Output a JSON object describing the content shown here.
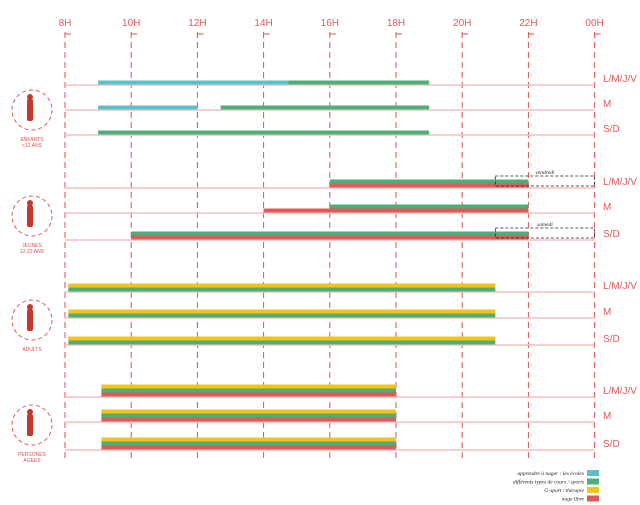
{
  "chart_data": {
    "type": "bar",
    "x_ticks": [
      "8H",
      "10H",
      "12H",
      "14H",
      "16H",
      "18H",
      "20H",
      "22H",
      "00H"
    ],
    "xlim": [
      8,
      24
    ],
    "colors": {
      "apprendre": "#5bc0c8",
      "cours": "#4caf7a",
      "gsport": "#f2c318",
      "libre": "#e05a5a",
      "line": "#f4c0c0",
      "grid": "#d9534f"
    },
    "legend": [
      {
        "key": "apprendre",
        "label": "apprendre à nager : les écoles"
      },
      {
        "key": "cours",
        "label": "différents types de cours / sports"
      },
      {
        "key": "gsport",
        "label": "G-sport / thérapie"
      },
      {
        "key": "libre",
        "label": "nage libre"
      }
    ],
    "groups": [
      {
        "name": "ENFANTS",
        "sub": "<12 ANS",
        "icon": "children-icon",
        "rows": [
          {
            "day": "L/M/J/V",
            "bars": [
              [
                {
                  "key": "apprendre",
                  "start": 9,
                  "end": 14.75
                },
                {
                  "key": "cours",
                  "start": 14.75,
                  "end": 19
                }
              ]
            ]
          },
          {
            "day": "M",
            "bars": [
              [
                {
                  "key": "apprendre",
                  "start": 9,
                  "end": 12
                },
                {
                  "key": "cours",
                  "start": 12.7,
                  "end": 19
                }
              ]
            ]
          },
          {
            "day": "S/D",
            "bars": [
              [
                {
                  "key": "cours",
                  "start": 9,
                  "end": 19
                }
              ]
            ]
          }
        ]
      },
      {
        "name": "JEUNES",
        "sub": "12-22 ANS",
        "icon": "youth-icon",
        "rows": [
          {
            "day": "L/M/J/V",
            "bars": [
              [
                {
                  "key": "cours",
                  "start": 16,
                  "end": 22
                }
              ],
              [
                {
                  "key": "libre",
                  "start": 16,
                  "end": 22
                }
              ]
            ],
            "note": {
              "label": "vendredi",
              "start": 21,
              "end": 24
            }
          },
          {
            "day": "M",
            "bars": [
              [
                {
                  "key": "cours",
                  "start": 16,
                  "end": 22
                }
              ],
              [
                {
                  "key": "libre",
                  "start": 14,
                  "end": 22
                }
              ]
            ]
          },
          {
            "day": "S/D",
            "bars": [
              [
                {
                  "key": "cours",
                  "start": 10,
                  "end": 22
                }
              ],
              [
                {
                  "key": "libre",
                  "start": 10,
                  "end": 22
                }
              ]
            ],
            "note": {
              "label": "samedi",
              "start": 21,
              "end": 24
            }
          }
        ]
      },
      {
        "name": "ADULTS",
        "sub": "",
        "icon": "adult-icon",
        "rows": [
          {
            "day": "L/M/J/V",
            "bars": [
              [
                {
                  "key": "gsport",
                  "start": 8.1,
                  "end": 21
                }
              ],
              [
                {
                  "key": "cours",
                  "start": 8.1,
                  "end": 21
                }
              ]
            ]
          },
          {
            "day": "M",
            "bars": [
              [
                {
                  "key": "gsport",
                  "start": 8.1,
                  "end": 21
                }
              ],
              [
                {
                  "key": "cours",
                  "start": 8.1,
                  "end": 21
                }
              ]
            ]
          },
          {
            "day": "S/D",
            "bars": [
              [
                {
                  "key": "gsport",
                  "start": 8.1,
                  "end": 21
                }
              ],
              [
                {
                  "key": "cours",
                  "start": 8.1,
                  "end": 21
                }
              ]
            ]
          }
        ]
      },
      {
        "name": "PERSONES",
        "sub": "AGEES",
        "icon": "elderly-icon",
        "rows": [
          {
            "day": "L/M/J/V",
            "bars": [
              [
                {
                  "key": "gsport",
                  "start": 9.1,
                  "end": 18
                }
              ],
              [
                {
                  "key": "cours",
                  "start": 9.1,
                  "end": 18
                }
              ],
              [
                {
                  "key": "libre",
                  "start": 9.1,
                  "end": 18
                }
              ]
            ]
          },
          {
            "day": "M",
            "bars": [
              [
                {
                  "key": "gsport",
                  "start": 9.1,
                  "end": 18
                }
              ],
              [
                {
                  "key": "cours",
                  "start": 9.1,
                  "end": 18
                }
              ],
              [
                {
                  "key": "libre",
                  "start": 9.1,
                  "end": 18
                }
              ]
            ]
          },
          {
            "day": "S/D",
            "bars": [
              [
                {
                  "key": "gsport",
                  "start": 9.1,
                  "end": 18
                }
              ],
              [
                {
                  "key": "cours",
                  "start": 9.1,
                  "end": 18
                }
              ],
              [
                {
                  "key": "libre",
                  "start": 9.1,
                  "end": 18
                }
              ]
            ]
          }
        ]
      }
    ]
  }
}
